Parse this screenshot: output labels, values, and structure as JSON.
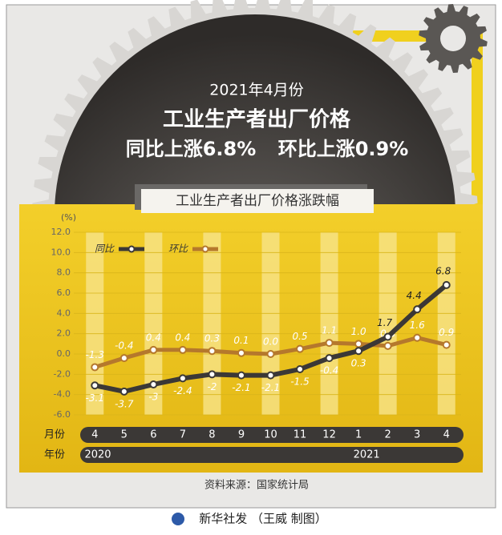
{
  "chart_data": {
    "type": "line",
    "kicker": "2021年4月份",
    "title": "工业生产者出厂价格",
    "headline_left": "同比上涨6.8%",
    "headline_right": "环比上涨0.9%",
    "subtitle": "工业生产者出厂价格涨跌幅",
    "y_unit": "(%)",
    "categories": [
      "4",
      "5",
      "6",
      "7",
      "8",
      "9",
      "10",
      "11",
      "12",
      "1",
      "2",
      "3",
      "4"
    ],
    "month_row_label": "月份",
    "year_row_label": "年份",
    "years": [
      "2020",
      "2021"
    ],
    "series": [
      {
        "name": "同比",
        "color": "#3b3836",
        "values": [
          -3.1,
          -3.7,
          -3.0,
          -2.4,
          -2.0,
          -2.1,
          -2.1,
          -1.5,
          -0.4,
          0.3,
          1.7,
          4.4,
          6.8
        ]
      },
      {
        "name": "环比",
        "color": "#b5782c",
        "values": [
          -1.3,
          -0.4,
          0.4,
          0.4,
          0.3,
          0.1,
          0.0,
          0.5,
          1.1,
          1.0,
          0.8,
          1.6,
          0.9
        ],
        "value_labels": [
          "-1.3",
          "-0.4",
          "0.4",
          "0.4",
          "0.3",
          "0.1",
          "0.0",
          "0.5",
          "1.1",
          "1.0",
          "0.8",
          "1.6",
          "0.9"
        ]
      }
    ],
    "ylim": [
      -6,
      12
    ],
    "yticks": [
      {
        "value": -6,
        "label": "-6.0"
      },
      {
        "value": -4,
        "label": "-4.0"
      },
      {
        "value": -2,
        "label": "-2.0"
      },
      {
        "value": 0,
        "label": "0.0"
      },
      {
        "value": 2,
        "label": "2.0"
      },
      {
        "value": 4,
        "label": "4.0"
      },
      {
        "value": 6,
        "label": "6.0"
      },
      {
        "value": 8,
        "label": "8.0"
      },
      {
        "value": 10,
        "label": "10.0"
      },
      {
        "value": 12,
        "label": "12.0"
      }
    ],
    "grid": true,
    "source": "资料来源：国家统计局",
    "credit": "新华社发 （王威 制图）"
  }
}
